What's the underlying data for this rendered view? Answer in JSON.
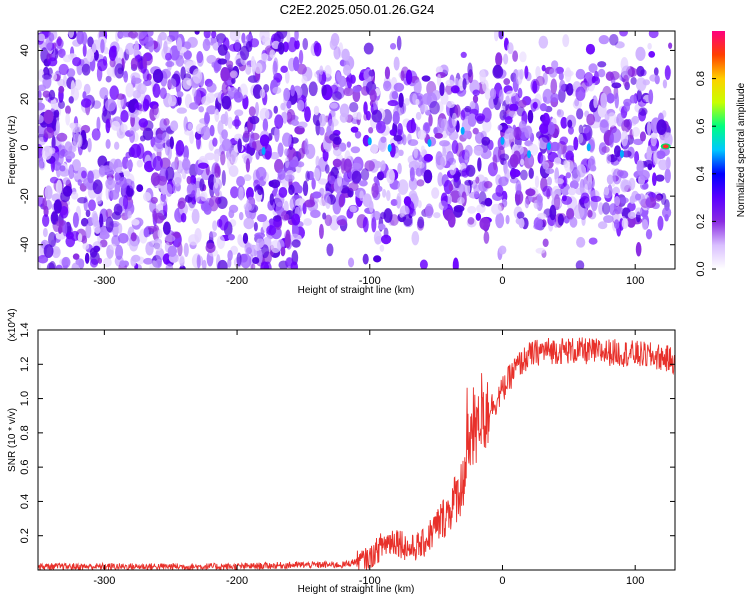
{
  "title": "C2E2.2025.050.01.26.G24",
  "chart_data": [
    {
      "type": "heatmap",
      "xlabel": "Height of straight line (km)",
      "ylabel": "Frequency (Hz)",
      "xlim": [
        -350,
        130
      ],
      "ylim": [
        -50,
        48
      ],
      "xticks": [
        -300,
        -200,
        -100,
        0,
        100
      ],
      "yticks": [
        -40,
        -20,
        0,
        20,
        40
      ],
      "colorbar": {
        "label": "Normalized spectral amplitude",
        "range": [
          0,
          1
        ],
        "ticks": [
          0.0,
          0.2,
          0.4,
          0.6,
          0.8
        ],
        "colors": [
          "#ffffff",
          "#d9bfff",
          "#8a2be2",
          "#5a00ff",
          "#0000ff",
          "#00c8ff",
          "#00ff80",
          "#c8ff00",
          "#ffd000",
          "#ff4000",
          "#ff0080"
        ]
      },
      "notes_regions": [
        {
          "x": [
            -350,
            -150
          ],
          "y": [
            -50,
            48
          ],
          "level": 0.25
        },
        {
          "x": [
            -150,
            125
          ],
          "y": [
            -32,
            32
          ],
          "level": 0.3
        },
        {
          "x": [
            120,
            130
          ],
          "y": [
            -2,
            2
          ],
          "level": 0.9
        }
      ]
    },
    {
      "type": "line",
      "xlabel": "Height of straight line (km)",
      "ylabel": "SNR (10 * v/v)",
      "yunit": "(x10^4)",
      "xlim": [
        -350,
        130
      ],
      "ylim": [
        0,
        1.4
      ],
      "xticks": [
        -300,
        -200,
        -100,
        0,
        100
      ],
      "yticks": [
        0.2,
        0.4,
        0.6,
        0.8,
        1.0,
        1.2,
        1.4
      ],
      "color": "#e8302a",
      "x": [
        -350,
        -300,
        -250,
        -200,
        -150,
        -120,
        -100,
        -90,
        -80,
        -70,
        -60,
        -50,
        -40,
        -30,
        -25,
        -20,
        -15,
        -10,
        -5,
        0,
        10,
        20,
        30,
        50,
        80,
        100,
        120,
        130
      ],
      "y": [
        0.02,
        0.02,
        0.02,
        0.02,
        0.03,
        0.03,
        0.07,
        0.15,
        0.18,
        0.12,
        0.15,
        0.25,
        0.35,
        0.5,
        0.75,
        0.85,
        0.92,
        0.95,
        0.98,
        1.05,
        1.18,
        1.25,
        1.28,
        1.28,
        1.27,
        1.26,
        1.24,
        1.22
      ]
    }
  ]
}
